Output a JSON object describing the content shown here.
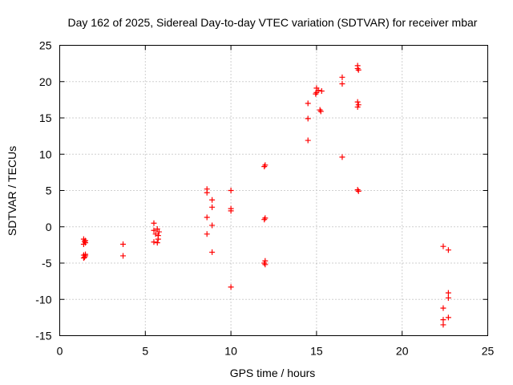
{
  "chart_data": {
    "type": "scatter",
    "title": "Day 162 of 2025, Sidereal Day-to-day VTEC variation (SDTVAR) for receiver mbar",
    "xlabel": "GPS time / hours",
    "ylabel": "SDTVAR / TECUs",
    "xlim": [
      0,
      25
    ],
    "ylim": [
      -15,
      25
    ],
    "xticks": [
      0,
      5,
      10,
      15,
      20,
      25
    ],
    "yticks": [
      -15,
      -10,
      -5,
      0,
      5,
      10,
      15,
      20,
      25
    ],
    "grid": true,
    "marker": "+",
    "color": "#ff0000",
    "series": [
      {
        "name": "SDTVAR",
        "points": [
          [
            1.4,
            -1.7
          ],
          [
            1.45,
            -2.0
          ],
          [
            1.5,
            -2.2
          ],
          [
            1.4,
            -2.4
          ],
          [
            1.5,
            -1.9
          ],
          [
            1.4,
            -3.9
          ],
          [
            1.45,
            -4.2
          ],
          [
            1.5,
            -4.0
          ],
          [
            1.4,
            -4.3
          ],
          [
            1.5,
            -3.8
          ],
          [
            3.7,
            -2.4
          ],
          [
            3.7,
            -4.0
          ],
          [
            5.5,
            0.5
          ],
          [
            5.5,
            -0.5
          ],
          [
            5.5,
            -2.1
          ],
          [
            5.6,
            -1.0
          ],
          [
            5.7,
            -0.3
          ],
          [
            5.75,
            -1.2
          ],
          [
            5.75,
            -1.7
          ],
          [
            5.7,
            -2.2
          ],
          [
            5.8,
            -0.7
          ],
          [
            8.6,
            5.2
          ],
          [
            8.6,
            4.7
          ],
          [
            8.6,
            1.3
          ],
          [
            8.6,
            -1.0
          ],
          [
            8.9,
            3.7
          ],
          [
            8.9,
            2.7
          ],
          [
            8.9,
            0.2
          ],
          [
            8.9,
            -3.5
          ],
          [
            10.0,
            5.0
          ],
          [
            10.0,
            2.5
          ],
          [
            10.0,
            2.2
          ],
          [
            10.0,
            -8.3
          ],
          [
            12.0,
            8.5
          ],
          [
            11.95,
            8.3
          ],
          [
            12.0,
            1.2
          ],
          [
            11.95,
            1.0
          ],
          [
            12.0,
            -4.7
          ],
          [
            11.95,
            -5.0
          ],
          [
            12.0,
            -5.2
          ],
          [
            14.5,
            17.0
          ],
          [
            14.5,
            14.9
          ],
          [
            14.5,
            11.9
          ],
          [
            15.0,
            19.1
          ],
          [
            15.0,
            18.5
          ],
          [
            15.1,
            18.8
          ],
          [
            15.3,
            18.7
          ],
          [
            14.95,
            18.3
          ],
          [
            15.2,
            16.1
          ],
          [
            15.25,
            15.9
          ],
          [
            16.5,
            20.6
          ],
          [
            16.5,
            19.7
          ],
          [
            16.5,
            9.6
          ],
          [
            17.4,
            22.2
          ],
          [
            17.4,
            21.8
          ],
          [
            17.45,
            21.6
          ],
          [
            17.4,
            17.2
          ],
          [
            17.45,
            16.8
          ],
          [
            17.4,
            16.5
          ],
          [
            17.4,
            5.1
          ],
          [
            17.45,
            4.9
          ],
          [
            22.4,
            -2.7
          ],
          [
            22.7,
            -3.2
          ],
          [
            22.7,
            -9.1
          ],
          [
            22.7,
            -9.8
          ],
          [
            22.4,
            -11.2
          ],
          [
            22.7,
            -12.5
          ],
          [
            22.4,
            -12.8
          ],
          [
            22.4,
            -13.5
          ]
        ]
      }
    ]
  }
}
